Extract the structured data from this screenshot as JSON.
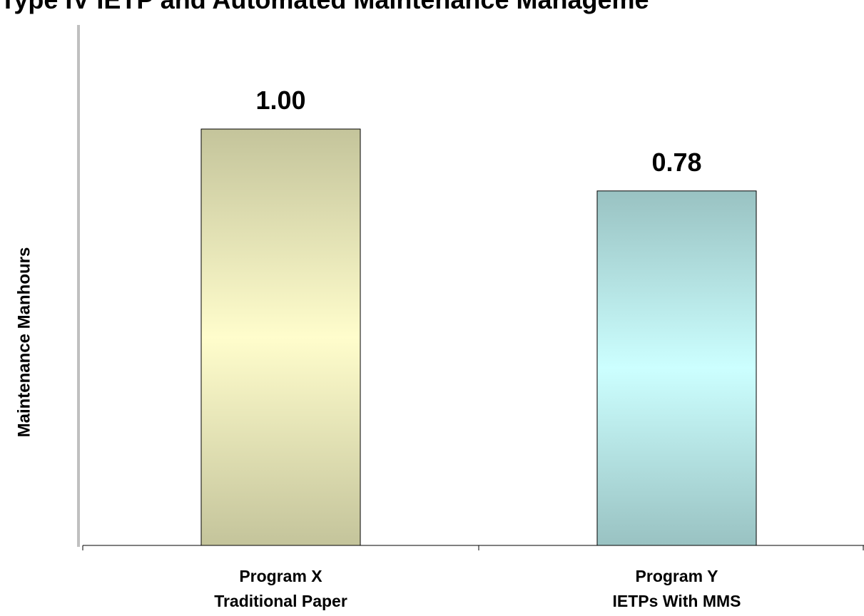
{
  "chart_data": {
    "type": "bar",
    "title": "Type IV IETP and Automated Maintenance Manageme",
    "y_label": "Maintenance Manhours",
    "categories": [
      [
        "Program X",
        "Traditional Paper"
      ],
      [
        "Program Y",
        "IETPs With MMS"
      ]
    ],
    "values": [
      1.0,
      0.78
    ],
    "value_labels": [
      "1.00",
      "0.78"
    ],
    "colors": [
      [
        "#c4c49b",
        "#fffdcc"
      ],
      [
        "#99c2c2",
        "#ccffff"
      ]
    ],
    "ylim": [
      -0.48,
      1.37
    ]
  }
}
